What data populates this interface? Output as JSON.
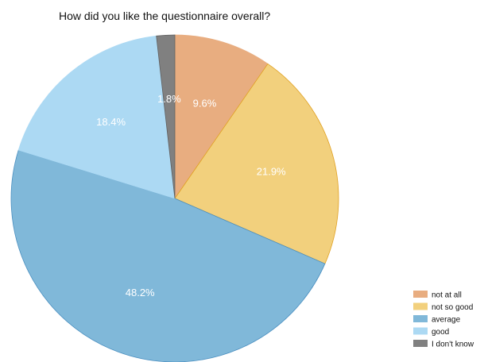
{
  "chart_data": {
    "type": "pie",
    "title": "How did you like the questionnaire overall?",
    "categories": [
      "not at all",
      "not so good",
      "average",
      "good",
      "I don't know"
    ],
    "values": [
      9.6,
      21.9,
      48.2,
      18.4,
      1.8
    ],
    "labels": [
      "9.6%",
      "21.9%",
      "48.2%",
      "18.4%",
      "1.8%"
    ],
    "colors": [
      "#e8ad80",
      "#f2d07d",
      "#80b8d9",
      "#acd9f3",
      "#808080"
    ],
    "edge_colors": [
      "#e8ad80",
      "#e0a020",
      "#4a8fc0",
      "#acd9f3",
      "#606060"
    ],
    "start_angle_deg": 0,
    "direction": "clockwise",
    "legend_position": "bottom-right"
  }
}
